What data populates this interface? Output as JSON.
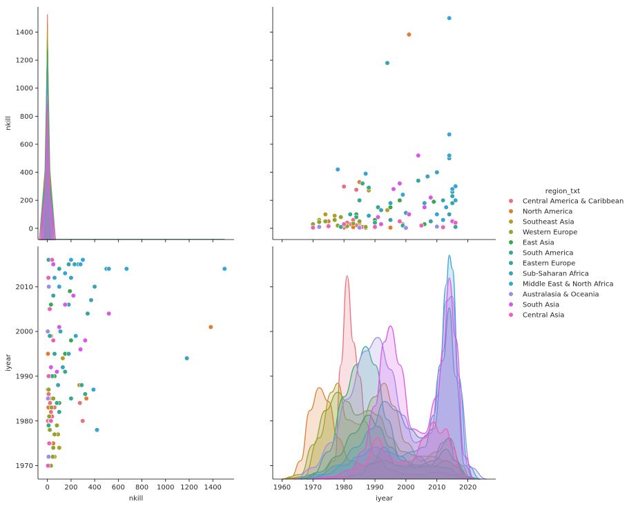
{
  "chart_data": {
    "type": "scatter",
    "kind": "pairplot",
    "variables": [
      "nkill",
      "iyear"
    ],
    "hue_title": "region_txt",
    "legend_position": "right",
    "axes": {
      "nkill": {
        "label": "nkill",
        "ticks": [
          0,
          200,
          400,
          600,
          800,
          1000,
          1200,
          1400
        ],
        "lim": [
          -80,
          1580
        ]
      },
      "iyear": {
        "label": "iyear",
        "ticks": [
          1960,
          1970,
          1980,
          1990,
          2000,
          2010,
          2020
        ],
        "lim_x": [
          1957,
          2029
        ],
        "lim_y": [
          1967,
          2019
        ]
      }
    },
    "diag_nkill_ymax": 1560,
    "kde_ymax": 1.0,
    "series": [
      {
        "name": "Central America & Caribbean",
        "color": "#e8717d",
        "points": [
          [
            298,
            1980
          ],
          [
            275,
            1984
          ],
          [
            5,
            1980
          ],
          [
            12,
            1983
          ],
          [
            20,
            1985
          ],
          [
            8,
            1979
          ],
          [
            30,
            1982
          ],
          [
            40,
            1981
          ],
          [
            15,
            1990
          ],
          [
            22,
            1984
          ],
          [
            10,
            1986
          ],
          [
            60,
            1983
          ],
          [
            3,
            1987
          ]
        ],
        "kde": [
          [
            1960,
            0
          ],
          [
            1972,
            0.01
          ],
          [
            1977,
            0.08
          ],
          [
            1979,
            0.5
          ],
          [
            1981,
            0.89
          ],
          [
            1983,
            0.6
          ],
          [
            1985,
            0.45
          ],
          [
            1987,
            0.25
          ],
          [
            1990,
            0.1
          ],
          [
            1995,
            0.04
          ],
          [
            2000,
            0.02
          ],
          [
            2005,
            0.02
          ],
          [
            2010,
            0.03
          ],
          [
            2015,
            0.02
          ],
          [
            2020,
            0
          ]
        ]
      },
      {
        "name": "North America",
        "color": "#e07d33",
        "points": [
          [
            1383,
            2001
          ],
          [
            330,
            1985
          ],
          [
            50,
            1975
          ],
          [
            20,
            1970
          ],
          [
            10,
            1972
          ],
          [
            5,
            1995
          ],
          [
            8,
            1983
          ],
          [
            30,
            1999
          ]
        ],
        "kde": [
          [
            1960,
            0
          ],
          [
            1963,
            0.01
          ],
          [
            1966,
            0.08
          ],
          [
            1969,
            0.3
          ],
          [
            1972,
            0.4
          ],
          [
            1975,
            0.34
          ],
          [
            1978,
            0.18
          ],
          [
            1982,
            0.08
          ],
          [
            1987,
            0.06
          ],
          [
            1993,
            0.08
          ],
          [
            1998,
            0.06
          ],
          [
            2003,
            0.06
          ],
          [
            2008,
            0.05
          ],
          [
            2013,
            0.08
          ],
          [
            2016,
            0.06
          ],
          [
            2020,
            0.01
          ],
          [
            2024,
            0
          ]
        ]
      },
      {
        "name": "Southeast Asia",
        "color": "#b59a2c",
        "points": [
          [
            270,
            1988
          ],
          [
            100,
            1974
          ],
          [
            60,
            1972
          ],
          [
            90,
            1977
          ],
          [
            40,
            1985
          ],
          [
            20,
            1975
          ],
          [
            130,
            1994
          ],
          [
            10,
            1970
          ]
        ],
        "kde": [
          [
            1960,
            0
          ],
          [
            1967,
            0.01
          ],
          [
            1972,
            0.18
          ],
          [
            1976,
            0.38
          ],
          [
            1978,
            0.42
          ],
          [
            1981,
            0.26
          ],
          [
            1985,
            0.24
          ],
          [
            1990,
            0.36
          ],
          [
            1993,
            0.42
          ],
          [
            1996,
            0.32
          ],
          [
            2000,
            0.16
          ],
          [
            2005,
            0.08
          ],
          [
            2010,
            0.12
          ],
          [
            2014,
            0.18
          ],
          [
            2018,
            0.06
          ],
          [
            2021,
            0
          ]
        ]
      },
      {
        "name": "Western Europe",
        "color": "#8fa42f",
        "points": [
          [
            30,
            1970
          ],
          [
            45,
            1972
          ],
          [
            50,
            1974
          ],
          [
            60,
            1977
          ],
          [
            20,
            1978
          ],
          [
            80,
            1979
          ],
          [
            25,
            1980
          ],
          [
            15,
            1981
          ],
          [
            35,
            1983
          ],
          [
            50,
            1985
          ],
          [
            10,
            1987
          ],
          [
            5,
            1990
          ]
        ],
        "kde": [
          [
            1960,
            0
          ],
          [
            1966,
            0.02
          ],
          [
            1970,
            0.15
          ],
          [
            1974,
            0.3
          ],
          [
            1978,
            0.38
          ],
          [
            1981,
            0.34
          ],
          [
            1984,
            0.28
          ],
          [
            1988,
            0.3
          ],
          [
            1991,
            0.28
          ],
          [
            1995,
            0.18
          ],
          [
            1999,
            0.12
          ],
          [
            2004,
            0.1
          ],
          [
            2008,
            0.1
          ],
          [
            2013,
            0.08
          ],
          [
            2017,
            0.05
          ],
          [
            2021,
            0
          ]
        ]
      },
      {
        "name": "East Asia",
        "color": "#39a84c",
        "points": [
          [
            190,
            2009
          ],
          [
            200,
            1998
          ],
          [
            150,
            1995
          ],
          [
            60,
            1990
          ],
          [
            30,
            2006
          ],
          [
            100,
            1984
          ]
        ],
        "kde": [
          [
            1966,
            0
          ],
          [
            1972,
            0.03
          ],
          [
            1978,
            0.1
          ],
          [
            1983,
            0.2
          ],
          [
            1988,
            0.28
          ],
          [
            1991,
            0.23
          ],
          [
            1995,
            0.14
          ],
          [
            1999,
            0.08
          ],
          [
            2004,
            0.06
          ],
          [
            2009,
            0.08
          ],
          [
            2013,
            0.13
          ],
          [
            2016,
            0.08
          ],
          [
            2020,
            0.01
          ],
          [
            2024,
            0
          ]
        ]
      },
      {
        "name": "South America",
        "color": "#36a88c",
        "points": [
          [
            290,
            1988
          ],
          [
            200,
            1985
          ],
          [
            100,
            1982
          ],
          [
            40,
            1990
          ],
          [
            320,
            1986
          ],
          [
            150,
            1991
          ],
          [
            10,
            1979
          ],
          [
            80,
            1984
          ]
        ],
        "kde": [
          [
            1964,
            0
          ],
          [
            1970,
            0.02
          ],
          [
            1975,
            0.12
          ],
          [
            1980,
            0.36
          ],
          [
            1984,
            0.5
          ],
          [
            1987,
            0.58
          ],
          [
            1990,
            0.5
          ],
          [
            1994,
            0.26
          ],
          [
            1998,
            0.1
          ],
          [
            2003,
            0.05
          ],
          [
            2008,
            0.06
          ],
          [
            2013,
            0.05
          ],
          [
            2018,
            0.02
          ],
          [
            2022,
            0
          ]
        ]
      },
      {
        "name": "Eastern Europe",
        "color": "#3aa3a0",
        "points": [
          [
            340,
            2004
          ],
          [
            180,
            2015
          ],
          [
            100,
            2014
          ],
          [
            50,
            2008
          ],
          [
            20,
            1999
          ],
          [
            10,
            2016
          ],
          [
            60,
            1995
          ]
        ],
        "kde": [
          [
            1974,
            0
          ],
          [
            1980,
            0.01
          ],
          [
            1985,
            0.02
          ],
          [
            1989,
            0.07
          ],
          [
            1993,
            0.14
          ],
          [
            1997,
            0.06
          ],
          [
            2000,
            0.05
          ],
          [
            2004,
            0.1
          ],
          [
            2008,
            0.06
          ],
          [
            2012,
            0.16
          ],
          [
            2014,
            0.18
          ],
          [
            2016,
            0.08
          ],
          [
            2019,
            0.01
          ],
          [
            2022,
            0
          ]
        ]
      },
      {
        "name": "Sub-Saharan Africa",
        "color": "#3aa4b7",
        "points": [
          [
            400,
            2010
          ],
          [
            370,
            2007
          ],
          [
            200,
            2012
          ],
          [
            180,
            2006
          ],
          [
            110,
            2000
          ],
          [
            260,
            2015
          ],
          [
            1180,
            1994
          ],
          [
            500,
            2014
          ],
          [
            230,
            2015
          ],
          [
            180,
            1995
          ],
          [
            130,
            1992
          ],
          [
            90,
            1988
          ]
        ],
        "kde": [
          [
            1966,
            0
          ],
          [
            1972,
            0.02
          ],
          [
            1978,
            0.06
          ],
          [
            1984,
            0.14
          ],
          [
            1989,
            0.22
          ],
          [
            1993,
            0.34
          ],
          [
            1997,
            0.3
          ],
          [
            2001,
            0.22
          ],
          [
            2005,
            0.18
          ],
          [
            2009,
            0.22
          ],
          [
            2012,
            0.52
          ],
          [
            2014,
            0.75
          ],
          [
            2016,
            0.45
          ],
          [
            2019,
            0.06
          ],
          [
            2022,
            0
          ]
        ]
      },
      {
        "name": "Middle East & North Africa",
        "color": "#37a4d8",
        "points": [
          [
            1500,
            2014
          ],
          [
            670,
            2014
          ],
          [
            520,
            2014
          ],
          [
            300,
            2016
          ],
          [
            280,
            2015
          ],
          [
            420,
            1978
          ],
          [
            390,
            1987
          ],
          [
            200,
            2016
          ],
          [
            150,
            2013
          ],
          [
            100,
            2010
          ],
          [
            60,
            2012
          ],
          [
            240,
            1999
          ]
        ],
        "kde": [
          [
            1968,
            0
          ],
          [
            1974,
            0.02
          ],
          [
            1980,
            0.06
          ],
          [
            1985,
            0.1
          ],
          [
            1990,
            0.14
          ],
          [
            1994,
            0.12
          ],
          [
            1998,
            0.1
          ],
          [
            2002,
            0.12
          ],
          [
            2006,
            0.14
          ],
          [
            2009,
            0.28
          ],
          [
            2011,
            0.5
          ],
          [
            2013,
            0.85
          ],
          [
            2014,
            0.98
          ],
          [
            2015,
            0.92
          ],
          [
            2017,
            0.45
          ],
          [
            2020,
            0.06
          ],
          [
            2024,
            0
          ]
        ]
      },
      {
        "name": "Australasia & Oceania",
        "color": "#9a8ee8",
        "points": [
          [
            10,
            1972
          ],
          [
            5,
            1985
          ],
          [
            8,
            1990
          ],
          [
            3,
            2000
          ],
          [
            12,
            2010
          ]
        ],
        "kde": [
          [
            1964,
            0
          ],
          [
            1970,
            0.05
          ],
          [
            1976,
            0.16
          ],
          [
            1981,
            0.35
          ],
          [
            1987,
            0.56
          ],
          [
            1991,
            0.62
          ],
          [
            1995,
            0.48
          ],
          [
            1999,
            0.28
          ],
          [
            2003,
            0.16
          ],
          [
            2008,
            0.2
          ],
          [
            2011,
            0.48
          ],
          [
            2013,
            0.78
          ],
          [
            2015,
            0.8
          ],
          [
            2017,
            0.42
          ],
          [
            2021,
            0.05
          ],
          [
            2026,
            0
          ]
        ]
      },
      {
        "name": "South Asia",
        "color": "#d957e9",
        "points": [
          [
            520,
            2004
          ],
          [
            320,
            1998
          ],
          [
            280,
            1996
          ],
          [
            220,
            2008
          ],
          [
            150,
            2006
          ],
          [
            100,
            2001
          ],
          [
            50,
            2015
          ],
          [
            80,
            1991
          ],
          [
            30,
            1992
          ]
        ],
        "kde": [
          [
            1968,
            0
          ],
          [
            1976,
            0.01
          ],
          [
            1982,
            0.04
          ],
          [
            1986,
            0.12
          ],
          [
            1990,
            0.32
          ],
          [
            1993,
            0.6
          ],
          [
            1995,
            0.67
          ],
          [
            1998,
            0.5
          ],
          [
            2002,
            0.22
          ],
          [
            2006,
            0.2
          ],
          [
            2010,
            0.36
          ],
          [
            2012,
            0.56
          ],
          [
            2014,
            0.88
          ],
          [
            2016,
            0.62
          ],
          [
            2019,
            0.1
          ],
          [
            2022,
            0
          ]
        ]
      },
      {
        "name": "Central Asia",
        "color": "#ea62b5",
        "points": [
          [
            5,
            1970
          ],
          [
            15,
            1975
          ],
          [
            30,
            1980
          ],
          [
            10,
            1990
          ],
          [
            50,
            1998
          ],
          [
            20,
            2005
          ],
          [
            8,
            2012
          ],
          [
            40,
            2016
          ]
        ],
        "kde": [
          [
            1970,
            0
          ],
          [
            1980,
            0.01
          ],
          [
            1986,
            0.06
          ],
          [
            1991,
            0.18
          ],
          [
            1994,
            0.1
          ],
          [
            1998,
            0.07
          ],
          [
            2002,
            0.08
          ],
          [
            2006,
            0.18
          ],
          [
            2009,
            0.25
          ],
          [
            2011,
            0.2
          ],
          [
            2013,
            0.22
          ],
          [
            2015,
            0.14
          ],
          [
            2018,
            0.02
          ],
          [
            2021,
            0
          ]
        ]
      }
    ]
  }
}
